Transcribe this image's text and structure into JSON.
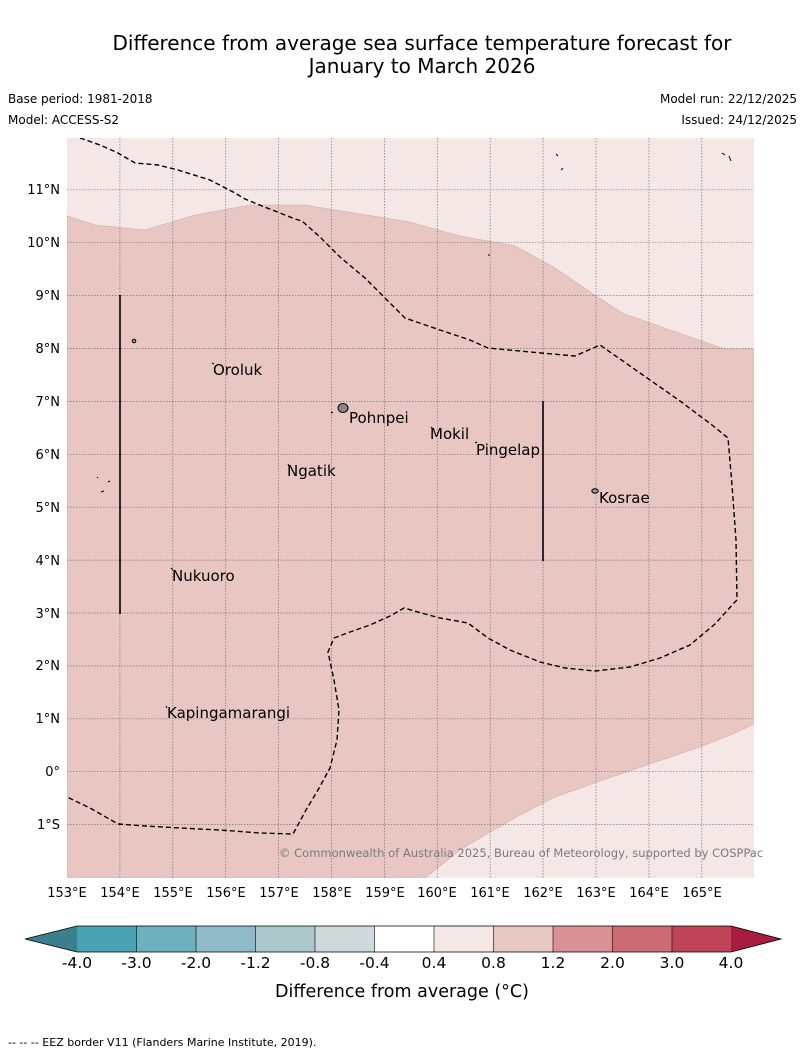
{
  "title": {
    "line1": "Difference from average sea surface temperature forecast for",
    "line2": "January to March 2026"
  },
  "meta": {
    "base_period": "Base period: 1981-2018",
    "model": "Model: ACCESS-S2",
    "model_run": "Model run: 22/12/2025",
    "issued": "Issued: 24/12/2025"
  },
  "map": {
    "lat_labels": [
      "11°N",
      "10°N",
      "9°N",
      "8°N",
      "7°N",
      "6°N",
      "5°N",
      "4°N",
      "3°N",
      "2°N",
      "1°N",
      "0°",
      "1°S"
    ],
    "lon_labels": [
      "153°E",
      "154°E",
      "155°E",
      "156°E",
      "157°E",
      "158°E",
      "159°E",
      "160°E",
      "161°E",
      "162°E",
      "163°E",
      "164°E",
      "165°E"
    ],
    "places": [
      "Oroluk",
      "Pohnpei",
      "Mokil",
      "Pingelap",
      "Ngatik",
      "Kosrae",
      "Nukuoro",
      "Kapingamarangi"
    ],
    "copyright": "© Commonwealth of Australia 2025, Bureau of Meteorology, supported by COSPPac",
    "colors": {
      "band_04_08": "#f5e7e6",
      "band_08_12": "#e8c7c3",
      "border": "#000000"
    }
  },
  "colorbar": {
    "ticks": [
      "-4.0",
      "-3.0",
      "-2.0",
      "-1.2",
      "-0.8",
      "-0.4",
      "0.4",
      "0.8",
      "1.2",
      "2.0",
      "3.0",
      "4.0"
    ],
    "colors": [
      "#3b7f8c",
      "#4aa3b4",
      "#6db0c0",
      "#8dbac6",
      "#abc9cd",
      "#ccdadb",
      "#ffffff",
      "#f5e7e6",
      "#e8c7c3",
      "#d99196",
      "#cd6b75",
      "#c04458",
      "#a81d3d"
    ],
    "label": "Difference from average (°C)"
  },
  "footer": {
    "text": "--  --  -- EEZ border V11 (Flanders Marine Institute, 2019)."
  }
}
